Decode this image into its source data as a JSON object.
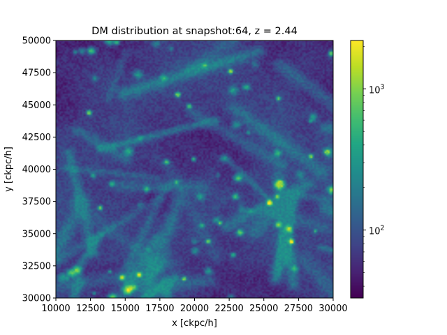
{
  "chart_data": {
    "type": "heatmap",
    "title": "DM distribution at snapshot:64, z = 2.44",
    "xlabel": "x [ckpc/h]",
    "ylabel": "y [ckpc/h]",
    "xlim": [
      10000,
      30000
    ],
    "ylim": [
      30000,
      50000
    ],
    "x_ticks": [
      10000,
      12500,
      15000,
      17500,
      20000,
      22500,
      25000,
      27500,
      30000
    ],
    "x_tick_labels": [
      "10000",
      "12500",
      "15000",
      "17500",
      "20000",
      "22500",
      "25000",
      "27500",
      "30000"
    ],
    "y_ticks": [
      30000,
      32500,
      35000,
      37500,
      40000,
      42500,
      45000,
      47500,
      50000
    ],
    "y_tick_labels": [
      "30000",
      "32500",
      "35000",
      "37500",
      "40000",
      "42500",
      "45000",
      "47500",
      "50000"
    ],
    "colorbar": {
      "scale": "log",
      "colormap": "viridis",
      "vmin": 33,
      "vmax": 2200,
      "tick_values": [
        100,
        1000
      ],
      "tick_labels": [
        {
          "base": "10",
          "exp": "2"
        },
        {
          "base": "10",
          "exp": "3"
        }
      ]
    },
    "grid": false,
    "description_of_field": "2D dark-matter particle count histogram showing cosmic-web filaments and halos",
    "seed": 64
  }
}
